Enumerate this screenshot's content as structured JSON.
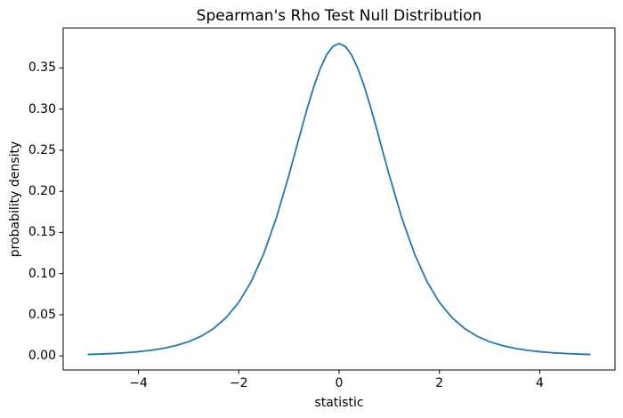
{
  "chart_data": {
    "type": "line",
    "title": "Spearman's Rho Test Null Distribution",
    "xlabel": "statistic",
    "ylabel": "probability density",
    "xlim": [
      -5.5,
      5.5
    ],
    "ylim": [
      -0.0171,
      0.3985
    ],
    "grid": false,
    "legend": null,
    "x_tick_values": [
      -4,
      -2,
      0,
      2,
      4
    ],
    "x_tick_labels": [
      "−4",
      "−2",
      "0",
      "2",
      "4"
    ],
    "y_tick_values": [
      0.0,
      0.05,
      0.1,
      0.15,
      0.2,
      0.25,
      0.3,
      0.35
    ],
    "y_tick_labels": [
      "0.00",
      "0.05",
      "0.10",
      "0.15",
      "0.20",
      "0.25",
      "0.30",
      "0.35"
    ],
    "series": [
      {
        "color": "#1f77b4",
        "x": [
          -5,
          -4.75,
          -4.5,
          -4.25,
          -4,
          -3.75,
          -3.5,
          -3.25,
          -3,
          -2.75,
          -2.5,
          -2.25,
          -2,
          -1.75,
          -1.5,
          -1.25,
          -1,
          -0.875,
          -0.75,
          -0.625,
          -0.5,
          -0.375,
          -0.25,
          -0.125,
          0,
          0.125,
          0.25,
          0.375,
          0.5,
          0.625,
          0.75,
          0.875,
          1,
          1.25,
          1.5,
          1.75,
          2,
          2.25,
          2.5,
          2.75,
          3,
          3.25,
          3.5,
          3.75,
          4,
          4.25,
          4.5,
          4.75,
          5
        ],
        "y": [
          0.00176,
          0.00227,
          0.00295,
          0.00387,
          0.00512,
          0.00685,
          0.00924,
          0.01259,
          0.01729,
          0.02394,
          0.03333,
          0.04658,
          0.0651,
          0.09055,
          0.12453,
          0.1679,
          0.2197,
          0.2476,
          0.2757,
          0.30293,
          0.32795,
          0.34933,
          0.36573,
          0.37611,
          0.37964,
          0.37611,
          0.36573,
          0.34933,
          0.32795,
          0.30293,
          0.2757,
          0.2476,
          0.2197,
          0.1679,
          0.12453,
          0.09055,
          0.0651,
          0.04658,
          0.03333,
          0.02394,
          0.01729,
          0.01259,
          0.00924,
          0.00685,
          0.00512,
          0.00387,
          0.00295,
          0.00227,
          0.00176
        ]
      }
    ],
    "colors": {
      "line": "#1f77b4",
      "frame": "#000000",
      "text": "#000000",
      "background": "#ffffff"
    }
  }
}
